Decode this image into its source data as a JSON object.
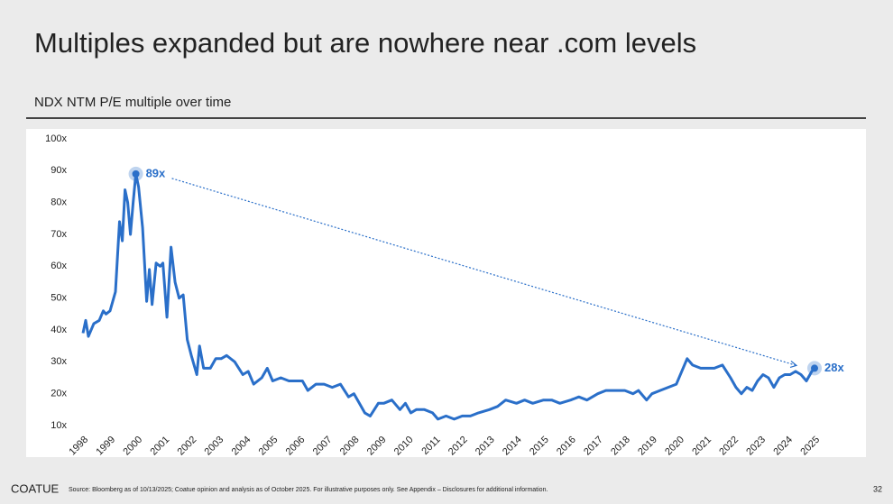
{
  "title": "Multiples expanded but are nowhere near .com levels",
  "footer": {
    "brand": "COATUE",
    "source": "Source: Bloomberg as of 10/13/2025; Coatue opinion and analysis as of October 2025. For illustrative purposes only. See Appendix – Disclosures for additional information.",
    "page": "32"
  },
  "chart_data": {
    "type": "line",
    "title": "NDX NTM P/E multiple over time",
    "x": [
      1998.0,
      1998.1,
      1998.2,
      1998.4,
      1998.6,
      1998.75,
      1998.85,
      1999.0,
      1999.2,
      1999.35,
      1999.45,
      1999.55,
      1999.65,
      1999.75,
      1999.85,
      1999.95,
      2000.05,
      2000.2,
      2000.35,
      2000.45,
      2000.55,
      2000.7,
      2000.85,
      2000.95,
      2001.1,
      2001.25,
      2001.4,
      2001.55,
      2001.7,
      2001.85,
      2002.0,
      2002.2,
      2002.3,
      2002.45,
      2002.7,
      2002.9,
      2003.1,
      2003.3,
      2003.6,
      2003.9,
      2004.1,
      2004.3,
      2004.6,
      2004.8,
      2005.0,
      2005.3,
      2005.6,
      2005.9,
      2006.1,
      2006.3,
      2006.6,
      2006.9,
      2007.2,
      2007.5,
      2007.8,
      2008.0,
      2008.2,
      2008.4,
      2008.6,
      2008.9,
      2009.1,
      2009.4,
      2009.7,
      2009.9,
      2010.1,
      2010.3,
      2010.6,
      2010.9,
      2011.1,
      2011.4,
      2011.7,
      2012.0,
      2012.3,
      2012.6,
      2013.0,
      2013.3,
      2013.6,
      2014.0,
      2014.3,
      2014.6,
      2015.0,
      2015.3,
      2015.6,
      2016.0,
      2016.3,
      2016.6,
      2017.0,
      2017.3,
      2017.6,
      2018.0,
      2018.3,
      2018.5,
      2018.8,
      2019.0,
      2019.3,
      2019.6,
      2019.9,
      2020.1,
      2020.3,
      2020.5,
      2020.8,
      2021.0,
      2021.3,
      2021.6,
      2021.9,
      2022.1,
      2022.3,
      2022.5,
      2022.7,
      2022.9,
      2023.1,
      2023.3,
      2023.5,
      2023.7,
      2023.9,
      2024.1,
      2024.3,
      2024.5,
      2024.7,
      2024.9,
      2025.0
    ],
    "series": [
      {
        "color": "#2a6fc9",
        "values": [
          39,
          43,
          38,
          42,
          43,
          46,
          45,
          46,
          52,
          74,
          68,
          84,
          80,
          70,
          80,
          89,
          85,
          72,
          49,
          59,
          48,
          61,
          60,
          61,
          44,
          66,
          55,
          50,
          51,
          37,
          32,
          26,
          35,
          28,
          28,
          31,
          31,
          32,
          30,
          26,
          27,
          23,
          25,
          28,
          24,
          25,
          24,
          24,
          24,
          21,
          23,
          23,
          22,
          23,
          19,
          20,
          17,
          14,
          13,
          17,
          17,
          18,
          15,
          17,
          14,
          15,
          15,
          14,
          12,
          13,
          12,
          13,
          13,
          14,
          15,
          16,
          18,
          17,
          18,
          17,
          18,
          18,
          17,
          18,
          19,
          18,
          20,
          21,
          21,
          21,
          20,
          21,
          18,
          20,
          21,
          22,
          23,
          27,
          31,
          29,
          28,
          28,
          28,
          29,
          25,
          22,
          20,
          22,
          21,
          24,
          26,
          25,
          22,
          25,
          26,
          26,
          27,
          26,
          24,
          27,
          28
        ]
      }
    ],
    "annotations": [
      {
        "label": "89x",
        "x": 1999.95,
        "y": 89
      },
      {
        "label": "28x",
        "x": 2025.0,
        "y": 28
      }
    ],
    "xlim": [
      1998,
      2025
    ],
    "xticks": [
      1998,
      1999,
      2000,
      2001,
      2002,
      2003,
      2004,
      2005,
      2006,
      2007,
      2008,
      2009,
      2010,
      2011,
      2012,
      2013,
      2014,
      2015,
      2016,
      2017,
      2018,
      2019,
      2020,
      2021,
      2022,
      2023,
      2024,
      2025
    ],
    "ylim": [
      10,
      100
    ],
    "yticks": [
      {
        "value": 10,
        "label": "10x"
      },
      {
        "value": 20,
        "label": "20x"
      },
      {
        "value": 30,
        "label": "30x"
      },
      {
        "value": 40,
        "label": "40x"
      },
      {
        "value": 50,
        "label": "50x"
      },
      {
        "value": 60,
        "label": "60x"
      },
      {
        "value": 70,
        "label": "70x"
      },
      {
        "value": 80,
        "label": "80x"
      },
      {
        "value": 90,
        "label": "90x"
      },
      {
        "value": 100,
        "label": "100x"
      }
    ]
  }
}
